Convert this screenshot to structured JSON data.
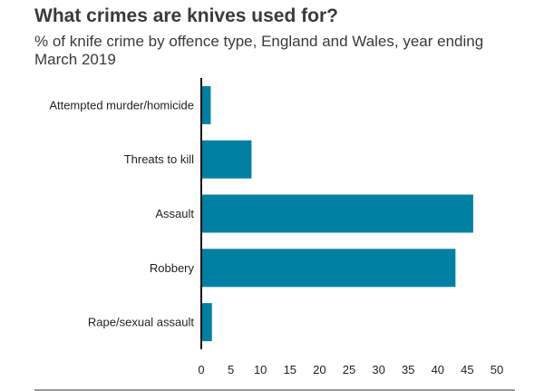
{
  "chart_data": {
    "type": "bar",
    "orientation": "horizontal",
    "title": "What crimes are knives used for?",
    "subtitle": "% of knife crime by offence type, England and Wales, year ending March 2019",
    "categories": [
      "Attempted murder/homicide",
      "Threats to kill",
      "Assault",
      "Robbery",
      "Rape/sexual assault"
    ],
    "values": [
      1.6,
      8.5,
      46,
      43,
      1.8
    ],
    "xlim": [
      0,
      50
    ],
    "xticks": [
      0,
      5,
      10,
      15,
      20,
      25,
      30,
      35,
      40,
      45,
      50
    ],
    "xlabel": "",
    "ylabel": "",
    "grid": false,
    "bar_color": "#0080a3",
    "axis_color": "#111111"
  }
}
